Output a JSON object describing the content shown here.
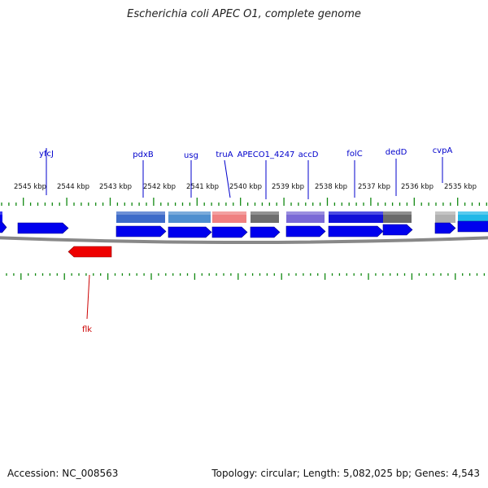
{
  "title": "Escherichia coli APEC O1, complete genome",
  "footer": {
    "accession": "Accession: NC_008563",
    "summary": "Topology: circular; Length: 5,082,025 bp; Genes: 4,543"
  },
  "scale_labels": [
    {
      "kb": 2545,
      "label": "2545 kbp"
    },
    {
      "kb": 2544,
      "label": "2544 kbp"
    },
    {
      "kb": 2543,
      "label": "2543 kbp"
    },
    {
      "kb": 2542,
      "label": "2542 kbp"
    },
    {
      "kb": 2541,
      "label": "2541 kbp"
    },
    {
      "kb": 2540,
      "label": "2540 kbp"
    },
    {
      "kb": 2539,
      "label": "2539 kbp"
    },
    {
      "kb": 2538,
      "label": "2538 kbp"
    },
    {
      "kb": 2537,
      "label": "2537 kbp"
    },
    {
      "kb": 2536,
      "label": "2536 kbp"
    },
    {
      "kb": 2535,
      "label": "2535 kbp"
    }
  ],
  "gene_labels_top": [
    {
      "name": "yfcJ",
      "color": "#0000cc"
    },
    {
      "name": "pdxB",
      "color": "#0000cc"
    },
    {
      "name": "usg",
      "color": "#0000cc"
    },
    {
      "name": "truA",
      "color": "#0000cc"
    },
    {
      "name": "APECO1_4247",
      "color": "#0000cc"
    },
    {
      "name": "accD",
      "color": "#0000cc"
    },
    {
      "name": "folC",
      "color": "#0000cc"
    },
    {
      "name": "dedD",
      "color": "#0000cc"
    },
    {
      "name": "cvpA",
      "color": "#0000cc"
    }
  ],
  "gene_labels_bottom": [
    {
      "name": "flk",
      "color": "#cc0000"
    }
  ],
  "colors": {
    "forward_gene": "#0000ee",
    "reverse_gene": "#ee0000",
    "backbone": "#888888",
    "tick": "#118811",
    "cog_pdxB": "#3d6bc9",
    "cog_usg": "#4f8fcf",
    "cog_truA": "#ef8080",
    "cog_APECO1_4247": "#6e6e6e",
    "cog_accD": "#7a6ad6",
    "cog_folC": "#1010d8",
    "cog_dedD": "#6a6a6a",
    "cog_cvpA": "#b0b0b0",
    "cog_next": "#20b8e8"
  }
}
